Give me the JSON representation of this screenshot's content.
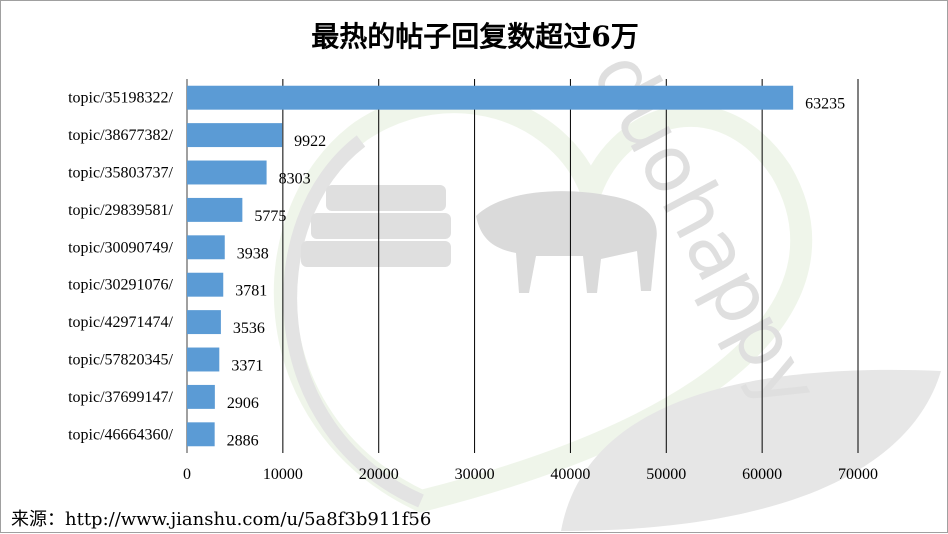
{
  "chart_data": {
    "type": "bar",
    "orientation": "horizontal",
    "title": "最热的帖子回复数超过6万",
    "categories": [
      "topic/35198322/",
      "topic/38677382/",
      "topic/35803737/",
      "topic/29839581/",
      "topic/30090749/",
      "topic/30291076/",
      "topic/42971474/",
      "topic/57820345/",
      "topic/37699147/",
      "topic/46664360/"
    ],
    "values": [
      63235,
      9922,
      8303,
      5775,
      3938,
      3781,
      3536,
      3371,
      2906,
      2886
    ],
    "xlim": [
      0,
      70000
    ],
    "xticks": [
      0,
      10000,
      20000,
      30000,
      40000,
      50000,
      60000,
      70000
    ],
    "xlabel": "",
    "ylabel": "",
    "grid": "vertical",
    "bar_color": "#5b9bd5",
    "legend": "none"
  },
  "source_text": "来源：http://www.jianshu.com/u/5a8f3b911f56",
  "watermark": {
    "text": "duohappy",
    "icons": [
      "heart-outline-icon",
      "books-icon",
      "bull-icon",
      "leaf-icon"
    ],
    "color": "#d9d9d9",
    "accent": "#e8f2df"
  }
}
